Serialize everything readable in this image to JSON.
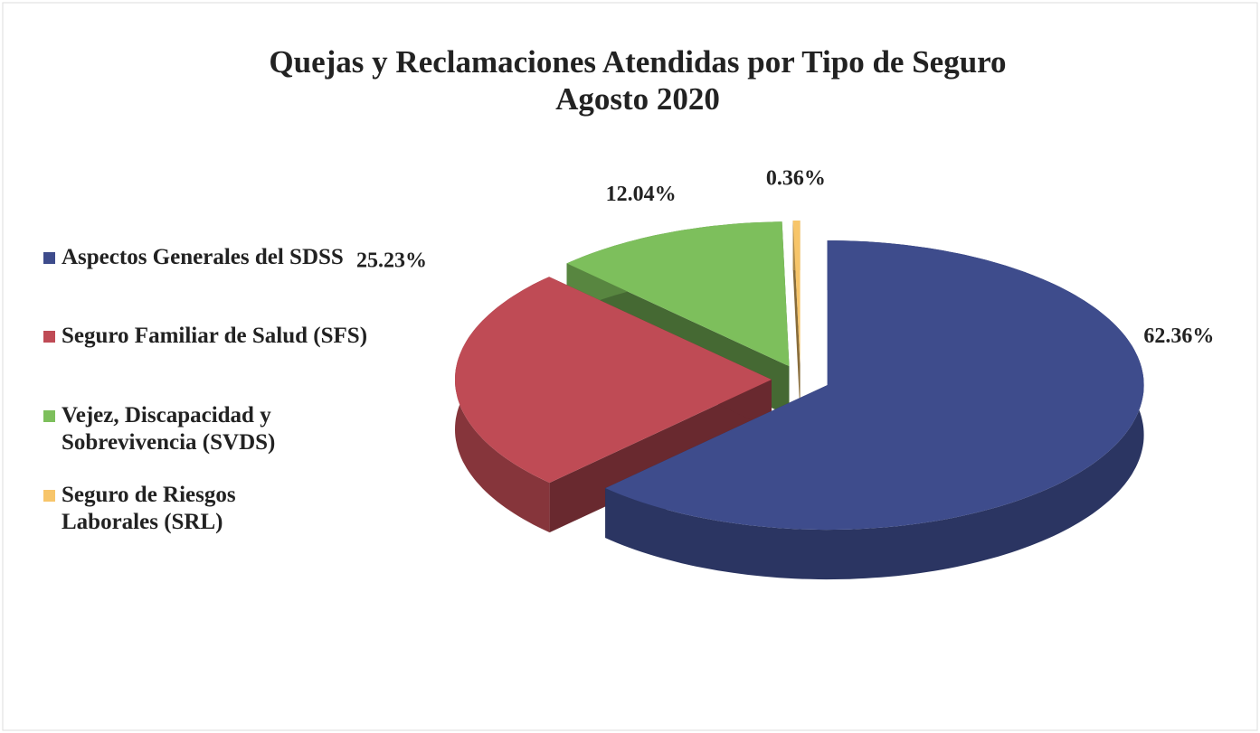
{
  "chart_data": {
    "type": "pie",
    "title": "Quejas y Reclamaciones Atendidas por Tipo de Seguro",
    "subtitle": "Agosto 2020",
    "categories": [
      "Aspectos Generales del  SDSS",
      "Seguro Familiar de Salud (SFS)",
      "Vejez, Discapacidad y Sobrevivencia (SVDS)",
      "Seguro de Riesgos Laborales (SRL)"
    ],
    "values": [
      62.36,
      25.23,
      12.04,
      0.36
    ],
    "value_labels": [
      "62.36%",
      "25.23%",
      "12.04%",
      "0.36%"
    ],
    "colors": [
      "#3e4c8c",
      "#bf4b55",
      "#7dbf5c",
      "#f7c56a"
    ],
    "legend": "left",
    "exploded": true,
    "three_d": true
  }
}
